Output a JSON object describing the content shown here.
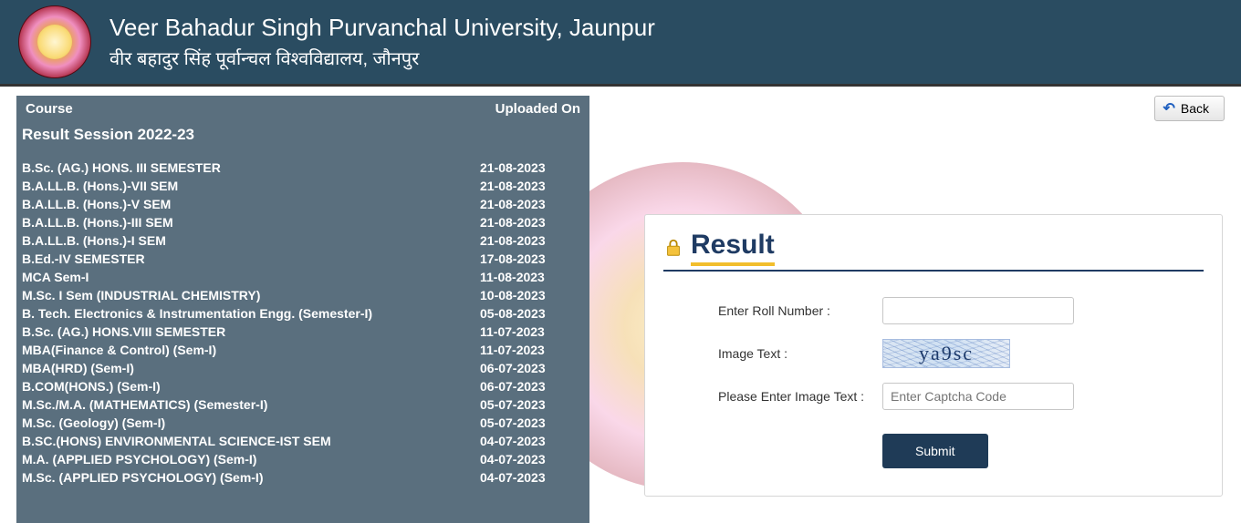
{
  "header": {
    "title_en": "Veer Bahadur Singh Purvanchal University, Jaunpur",
    "title_hi": "वीर बहादुर सिंह पूर्वान्चल विश्वविद्यालय, जौनपुर"
  },
  "back_button_label": "Back",
  "left_panel": {
    "col_course": "Course",
    "col_uploaded": "Uploaded On",
    "session_title": "Result Session 2022-23",
    "courses": [
      {
        "name": "B.Sc. (AG.) HONS. III SEMESTER",
        "date": "21-08-2023"
      },
      {
        "name": "B.A.LL.B. (Hons.)-VII SEM",
        "date": "21-08-2023"
      },
      {
        "name": "B.A.LL.B. (Hons.)-V SEM",
        "date": "21-08-2023"
      },
      {
        "name": "B.A.LL.B. (Hons.)-III SEM",
        "date": "21-08-2023"
      },
      {
        "name": "B.A.LL.B. (Hons.)-I SEM",
        "date": "21-08-2023"
      },
      {
        "name": "B.Ed.-IV SEMESTER",
        "date": "17-08-2023"
      },
      {
        "name": "MCA Sem-I",
        "date": "11-08-2023"
      },
      {
        "name": "M.Sc. I Sem (INDUSTRIAL CHEMISTRY)",
        "date": "10-08-2023"
      },
      {
        "name": "B. Tech. Electronics & Instrumentation Engg. (Semester-I)",
        "date": "05-08-2023"
      },
      {
        "name": "B.Sc. (AG.) HONS.VIII SEMESTER",
        "date": "11-07-2023"
      },
      {
        "name": "MBA(Finance & Control) (Sem-I)",
        "date": "11-07-2023"
      },
      {
        "name": "MBA(HRD) (Sem-I)",
        "date": "06-07-2023"
      },
      {
        "name": "B.COM(HONS.) (Sem-I)",
        "date": "06-07-2023"
      },
      {
        "name": "M.Sc./M.A. (MATHEMATICS) (Semester-I)",
        "date": "05-07-2023"
      },
      {
        "name": "M.Sc. (Geology) (Sem-I)",
        "date": "05-07-2023"
      },
      {
        "name": "B.SC.(HONS) ENVIRONMENTAL SCIENCE-IST SEM",
        "date": "04-07-2023"
      },
      {
        "name": "M.A. (APPLIED PSYCHOLOGY) (Sem-I)",
        "date": "04-07-2023"
      },
      {
        "name": "M.Sc. (APPLIED PSYCHOLOGY) (Sem-I)",
        "date": "04-07-2023"
      }
    ]
  },
  "result_card": {
    "title": "Result",
    "label_roll": "Enter Roll Number :",
    "label_image_text": "Image Text :",
    "label_captcha": "Please Enter Image Text :",
    "captcha_value": "ya9sc",
    "captcha_placeholder": "Enter Captcha Code",
    "submit_label": "Submit"
  },
  "styling": {
    "header_bg": "#2A4C61",
    "panel_bg": "#5A6F7E",
    "accent_blue": "#1f3b63",
    "accent_yellow": "#f2be2c",
    "submit_bg": "#1f3b57",
    "card_border": "#d6d6d6"
  }
}
